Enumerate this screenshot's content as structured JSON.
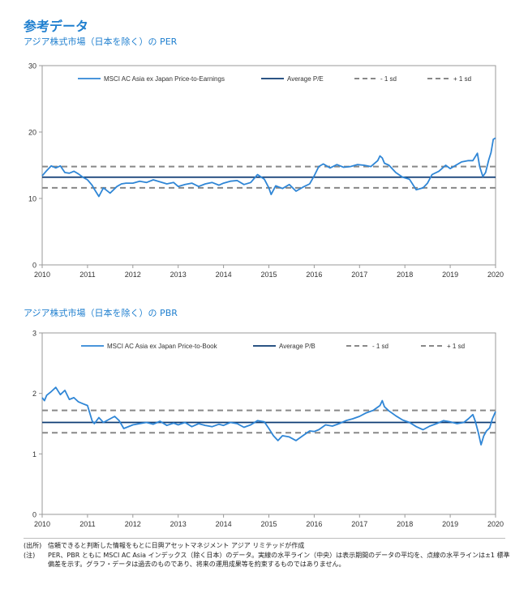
{
  "header": {
    "title": "参考データ"
  },
  "chart_data": [
    {
      "type": "line",
      "title": "アジア株式市場（日本を除く）の PER",
      "xlabel": "",
      "ylabel": "",
      "xlim": [
        2010,
        2020
      ],
      "ylim": [
        0,
        30
      ],
      "yticks": [
        "0",
        "10",
        "20",
        "30"
      ],
      "xticks": [
        "2010",
        "2011",
        "2012",
        "2013",
        "2014",
        "2015",
        "2016",
        "2017",
        "2018",
        "2019",
        "2020"
      ],
      "grid": false,
      "legend_position": "top",
      "colors": {
        "series": "#2f86d6",
        "average": "#0d3b73",
        "sd": "#888888"
      },
      "series": [
        {
          "name": "MSCI AC Asia ex Japan Price-to-Earnings",
          "x": [
            2010.0,
            2010.1,
            2010.2,
            2010.3,
            2010.4,
            2010.5,
            2010.6,
            2010.7,
            2010.8,
            2010.9,
            2011.0,
            2011.1,
            2011.15,
            2011.25,
            2011.35,
            2011.5,
            2011.65,
            2011.75,
            2011.85,
            2012.0,
            2012.15,
            2012.3,
            2012.45,
            2012.6,
            2012.75,
            2012.9,
            2013.0,
            2013.15,
            2013.3,
            2013.45,
            2013.6,
            2013.75,
            2013.9,
            2014.0,
            2014.15,
            2014.3,
            2014.45,
            2014.6,
            2014.75,
            2014.9,
            2015.0,
            2015.05,
            2015.15,
            2015.3,
            2015.45,
            2015.6,
            2015.75,
            2015.9,
            2016.0,
            2016.1,
            2016.2,
            2016.35,
            2016.5,
            2016.65,
            2016.8,
            2016.95,
            2017.1,
            2017.25,
            2017.4,
            2017.45,
            2017.5,
            2017.55,
            2017.65,
            2017.8,
            2017.95,
            2018.1,
            2018.25,
            2018.4,
            2018.5,
            2018.6,
            2018.75,
            2018.9,
            2019.0,
            2019.1,
            2019.25,
            2019.4,
            2019.5,
            2019.6,
            2019.65,
            2019.72,
            2019.78,
            2019.85,
            2019.9,
            2019.95,
            2020.0
          ],
          "y": [
            13.4,
            14.2,
            14.9,
            14.6,
            14.9,
            13.9,
            13.8,
            14.1,
            13.7,
            13.2,
            12.8,
            12.0,
            11.4,
            10.3,
            11.6,
            10.8,
            11.8,
            12.2,
            12.3,
            12.3,
            12.6,
            12.4,
            12.8,
            12.5,
            12.2,
            12.4,
            11.8,
            12.1,
            12.3,
            11.8,
            12.2,
            12.4,
            12.0,
            12.3,
            12.6,
            12.7,
            12.1,
            12.4,
            13.6,
            12.9,
            11.6,
            10.6,
            11.9,
            11.5,
            12.1,
            11.1,
            11.7,
            12.2,
            13.4,
            14.8,
            15.2,
            14.6,
            15.1,
            14.7,
            14.8,
            15.1,
            15.0,
            14.8,
            15.7,
            16.4,
            16.1,
            15.3,
            15.0,
            13.9,
            13.2,
            12.9,
            11.3,
            11.6,
            12.3,
            13.6,
            14.1,
            15.0,
            14.5,
            14.9,
            15.5,
            15.7,
            15.7,
            16.8,
            14.8,
            13.3,
            13.9,
            15.8,
            16.9,
            18.9,
            19.1
          ]
        },
        {
          "name": "Average P/E",
          "value": 13.2
        },
        {
          "name": "- 1 sd",
          "value": 11.6
        },
        {
          "name": "+ 1 sd",
          "value": 14.8
        }
      ]
    },
    {
      "type": "line",
      "title": "アジア株式市場（日本を除く）の PBR",
      "xlabel": "",
      "ylabel": "",
      "xlim": [
        2010,
        2020
      ],
      "ylim": [
        0,
        3
      ],
      "yticks": [
        "0",
        "1",
        "2",
        "3"
      ],
      "xticks": [
        "2010",
        "2011",
        "2012",
        "2013",
        "2014",
        "2015",
        "2016",
        "2017",
        "2018",
        "2019",
        "2020"
      ],
      "grid": false,
      "legend_position": "top",
      "colors": {
        "series": "#2f86d6",
        "average": "#0d3b73",
        "sd": "#888888"
      },
      "series": [
        {
          "name": "MSCI AC Asia ex Japan Price-to-Book",
          "x": [
            2010.0,
            2010.05,
            2010.1,
            2010.2,
            2010.3,
            2010.4,
            2010.5,
            2010.6,
            2010.7,
            2010.8,
            2010.9,
            2011.0,
            2011.1,
            2011.15,
            2011.25,
            2011.35,
            2011.5,
            2011.6,
            2011.7,
            2011.8,
            2012.0,
            2012.15,
            2012.3,
            2012.45,
            2012.6,
            2012.75,
            2012.9,
            2013.0,
            2013.15,
            2013.3,
            2013.45,
            2013.6,
            2013.75,
            2013.9,
            2014.0,
            2014.15,
            2014.3,
            2014.45,
            2014.6,
            2014.75,
            2014.9,
            2015.0,
            2015.1,
            2015.2,
            2015.3,
            2015.45,
            2015.6,
            2015.75,
            2015.9,
            2016.0,
            2016.1,
            2016.25,
            2016.4,
            2016.55,
            2016.7,
            2016.85,
            2017.0,
            2017.15,
            2017.3,
            2017.45,
            2017.5,
            2017.55,
            2017.65,
            2017.8,
            2017.95,
            2018.1,
            2018.25,
            2018.4,
            2018.55,
            2018.7,
            2018.85,
            2019.0,
            2019.15,
            2019.3,
            2019.4,
            2019.5,
            2019.55,
            2019.62,
            2019.68,
            2019.74,
            2019.8,
            2019.87,
            2019.93,
            2020.0
          ],
          "y": [
            1.93,
            1.88,
            1.97,
            2.03,
            2.1,
            1.98,
            2.05,
            1.9,
            1.93,
            1.86,
            1.83,
            1.8,
            1.55,
            1.5,
            1.6,
            1.52,
            1.58,
            1.62,
            1.55,
            1.42,
            1.48,
            1.5,
            1.52,
            1.49,
            1.54,
            1.47,
            1.51,
            1.48,
            1.52,
            1.45,
            1.5,
            1.47,
            1.45,
            1.49,
            1.47,
            1.52,
            1.5,
            1.44,
            1.48,
            1.55,
            1.53,
            1.42,
            1.3,
            1.22,
            1.3,
            1.28,
            1.22,
            1.3,
            1.38,
            1.37,
            1.4,
            1.48,
            1.46,
            1.5,
            1.55,
            1.58,
            1.62,
            1.68,
            1.72,
            1.8,
            1.88,
            1.78,
            1.71,
            1.63,
            1.56,
            1.52,
            1.45,
            1.4,
            1.46,
            1.5,
            1.55,
            1.53,
            1.5,
            1.52,
            1.58,
            1.65,
            1.55,
            1.35,
            1.15,
            1.3,
            1.38,
            1.43,
            1.58,
            1.7
          ]
        },
        {
          "name": "Average P/B",
          "value": 1.52
        },
        {
          "name": "- 1 sd",
          "value": 1.35
        },
        {
          "name": "+ 1 sd",
          "value": 1.72
        }
      ]
    }
  ],
  "footnotes": [
    {
      "label": "(出所)",
      "text": "信頼できると判断した情報をもとに日興アセットマネジメント アジア リミテッドが作成"
    },
    {
      "label": "(注)",
      "text": "PER、PBR ともに MSCI AC Asia インデックス（除く日本）のデータ。実線の水平ライン（中央）は表示期間のデータの平均を、点線の水平ラインは±1 標準偏差を示す。グラフ・データは過去のものであり、将来の運用成果等を約束するものではありません。"
    }
  ]
}
